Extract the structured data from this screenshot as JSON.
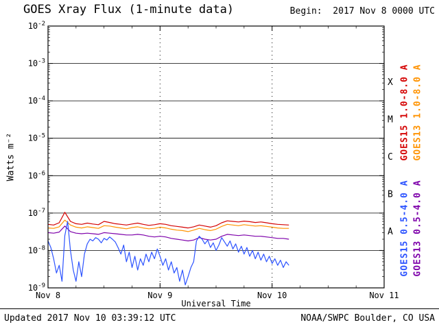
{
  "header": {
    "title": "GOES Xray Flux (1-minute data)",
    "begin_label": "Begin:  2017 Nov 8 0000 UTC"
  },
  "footer": {
    "updated": "Updated 2017 Nov 10 03:39:12 UTC",
    "credit": "NOAA/SWPC Boulder, CO USA"
  },
  "chart_data": {
    "type": "line",
    "title": "GOES Xray Flux (1-minute data)",
    "xlabel": "Universal Time",
    "ylabel": "Watts m⁻²",
    "x_range_days": [
      0,
      3
    ],
    "x_ticks": [
      {
        "t": 0,
        "label": "Nov 8"
      },
      {
        "t": 1,
        "label": "Nov 9"
      },
      {
        "t": 2,
        "label": "Nov 10"
      },
      {
        "t": 3,
        "label": "Nov 11"
      }
    ],
    "x_minor_step_days": 0.25,
    "y_log_range": [
      -9,
      -2
    ],
    "y_tick_exponents": [
      -2,
      -3,
      -4,
      -5,
      -6,
      -7,
      -8,
      -9
    ],
    "grid": {
      "horizontal": "solid",
      "vertical": "dotted-at-day-boundaries",
      "legend_position": "right-margin-rotated"
    },
    "flare_classes": [
      {
        "label": "X",
        "mid_exponent": -3.5
      },
      {
        "label": "M",
        "mid_exponent": -4.5
      },
      {
        "label": "C",
        "mid_exponent": -5.5
      },
      {
        "label": "B",
        "mid_exponent": -6.5
      },
      {
        "label": "A",
        "mid_exponent": -7.5
      }
    ],
    "series": [
      {
        "id": "goes15-long",
        "name": "GOES15 1.0-8.0 A",
        "color": "#d40000",
        "points": [
          [
            0.0,
            5e-08
          ],
          [
            0.05,
            4.8e-08
          ],
          [
            0.1,
            5.5e-08
          ],
          [
            0.15,
            1.05e-07
          ],
          [
            0.2,
            6e-08
          ],
          [
            0.25,
            5.2e-08
          ],
          [
            0.3,
            5e-08
          ],
          [
            0.35,
            5.4e-08
          ],
          [
            0.4,
            5.1e-08
          ],
          [
            0.45,
            4.9e-08
          ],
          [
            0.5,
            6e-08
          ],
          [
            0.55,
            5.6e-08
          ],
          [
            0.6,
            5.2e-08
          ],
          [
            0.65,
            5e-08
          ],
          [
            0.7,
            4.8e-08
          ],
          [
            0.75,
            5.1e-08
          ],
          [
            0.8,
            5.4e-08
          ],
          [
            0.85,
            5e-08
          ],
          [
            0.9,
            4.7e-08
          ],
          [
            0.95,
            4.9e-08
          ],
          [
            1.0,
            5.2e-08
          ],
          [
            1.05,
            5e-08
          ],
          [
            1.1,
            4.6e-08
          ],
          [
            1.15,
            4.4e-08
          ],
          [
            1.2,
            4.2e-08
          ],
          [
            1.25,
            4e-08
          ],
          [
            1.3,
            4.3e-08
          ],
          [
            1.35,
            4.8e-08
          ],
          [
            1.4,
            4.5e-08
          ],
          [
            1.45,
            4.2e-08
          ],
          [
            1.5,
            4.6e-08
          ],
          [
            1.55,
            5.5e-08
          ],
          [
            1.6,
            6.2e-08
          ],
          [
            1.65,
            6e-08
          ],
          [
            1.7,
            5.8e-08
          ],
          [
            1.75,
            6.1e-08
          ],
          [
            1.8,
            5.9e-08
          ],
          [
            1.85,
            5.6e-08
          ],
          [
            1.9,
            5.8e-08
          ],
          [
            1.95,
            5.5e-08
          ],
          [
            2.0,
            5.2e-08
          ],
          [
            2.05,
            5e-08
          ],
          [
            2.1,
            4.9e-08
          ],
          [
            2.15,
            4.8e-08
          ]
        ]
      },
      {
        "id": "goes13-long",
        "name": "GOES13 1.0-8.0 A",
        "color": "#ff9300",
        "points": [
          [
            0.0,
            4e-08
          ],
          [
            0.05,
            3.9e-08
          ],
          [
            0.1,
            4.3e-08
          ],
          [
            0.15,
            6.5e-08
          ],
          [
            0.2,
            4.8e-08
          ],
          [
            0.25,
            4.2e-08
          ],
          [
            0.3,
            4e-08
          ],
          [
            0.35,
            4.3e-08
          ],
          [
            0.4,
            4.1e-08
          ],
          [
            0.45,
            3.9e-08
          ],
          [
            0.5,
            4.6e-08
          ],
          [
            0.55,
            4.5e-08
          ],
          [
            0.6,
            4.2e-08
          ],
          [
            0.65,
            4e-08
          ],
          [
            0.7,
            3.8e-08
          ],
          [
            0.75,
            4.1e-08
          ],
          [
            0.8,
            4.3e-08
          ],
          [
            0.85,
            4e-08
          ],
          [
            0.9,
            3.8e-08
          ],
          [
            0.95,
            3.9e-08
          ],
          [
            1.0,
            4.2e-08
          ],
          [
            1.05,
            4e-08
          ],
          [
            1.1,
            3.7e-08
          ],
          [
            1.15,
            3.5e-08
          ],
          [
            1.2,
            3.4e-08
          ],
          [
            1.25,
            3.2e-08
          ],
          [
            1.3,
            3.5e-08
          ],
          [
            1.35,
            3.9e-08
          ],
          [
            1.4,
            3.6e-08
          ],
          [
            1.45,
            3.4e-08
          ],
          [
            1.5,
            3.7e-08
          ],
          [
            1.55,
            4.4e-08
          ],
          [
            1.6,
            5e-08
          ],
          [
            1.65,
            4.8e-08
          ],
          [
            1.7,
            4.6e-08
          ],
          [
            1.75,
            4.9e-08
          ],
          [
            1.8,
            4.7e-08
          ],
          [
            1.85,
            4.5e-08
          ],
          [
            1.9,
            4.6e-08
          ],
          [
            1.95,
            4.4e-08
          ],
          [
            2.0,
            4.2e-08
          ],
          [
            2.05,
            4e-08
          ],
          [
            2.1,
            3.9e-08
          ],
          [
            2.15,
            3.9e-08
          ]
        ]
      },
      {
        "id": "goes13-short",
        "name": "GOES13 0.5-4.0 A",
        "color": "#7d00aa",
        "points": [
          [
            0.0,
            3e-08
          ],
          [
            0.05,
            2.9e-08
          ],
          [
            0.1,
            3.1e-08
          ],
          [
            0.15,
            4.5e-08
          ],
          [
            0.2,
            3.2e-08
          ],
          [
            0.25,
            2.9e-08
          ],
          [
            0.3,
            2.8e-08
          ],
          [
            0.35,
            2.9e-08
          ],
          [
            0.4,
            2.8e-08
          ],
          [
            0.45,
            2.7e-08
          ],
          [
            0.5,
            3e-08
          ],
          [
            0.55,
            2.9e-08
          ],
          [
            0.6,
            2.8e-08
          ],
          [
            0.65,
            2.7e-08
          ],
          [
            0.7,
            2.6e-08
          ],
          [
            0.75,
            2.6e-08
          ],
          [
            0.8,
            2.7e-08
          ],
          [
            0.85,
            2.6e-08
          ],
          [
            0.9,
            2.4e-08
          ],
          [
            0.95,
            2.3e-08
          ],
          [
            1.0,
            2.4e-08
          ],
          [
            1.05,
            2.3e-08
          ],
          [
            1.1,
            2.1e-08
          ],
          [
            1.15,
            2e-08
          ],
          [
            1.2,
            1.9e-08
          ],
          [
            1.25,
            1.8e-08
          ],
          [
            1.3,
            1.9e-08
          ],
          [
            1.35,
            2.2e-08
          ],
          [
            1.4,
            2e-08
          ],
          [
            1.45,
            1.9e-08
          ],
          [
            1.5,
            2e-08
          ],
          [
            1.55,
            2.4e-08
          ],
          [
            1.6,
            2.7e-08
          ],
          [
            1.65,
            2.6e-08
          ],
          [
            1.7,
            2.5e-08
          ],
          [
            1.75,
            2.6e-08
          ],
          [
            1.8,
            2.5e-08
          ],
          [
            1.85,
            2.4e-08
          ],
          [
            1.9,
            2.4e-08
          ],
          [
            1.95,
            2.3e-08
          ],
          [
            2.0,
            2.2e-08
          ],
          [
            2.05,
            2.1e-08
          ],
          [
            2.1,
            2.1e-08
          ],
          [
            2.15,
            2e-08
          ]
        ]
      },
      {
        "id": "goes15-short",
        "name": "GOES15 0.5-4.0 A",
        "color": "#2b52ff",
        "points": [
          [
            0.0,
            1.8e-08
          ],
          [
            0.025,
            1.2e-08
          ],
          [
            0.05,
            6e-09
          ],
          [
            0.075,
            2.5e-09
          ],
          [
            0.1,
            4e-09
          ],
          [
            0.125,
            1.5e-09
          ],
          [
            0.15,
            2.5e-08
          ],
          [
            0.175,
            6e-08
          ],
          [
            0.2,
            1e-08
          ],
          [
            0.225,
            3e-09
          ],
          [
            0.25,
            1.5e-09
          ],
          [
            0.275,
            5e-09
          ],
          [
            0.3,
            2e-09
          ],
          [
            0.325,
            8e-09
          ],
          [
            0.35,
            1.5e-08
          ],
          [
            0.375,
            2e-08
          ],
          [
            0.4,
            1.8e-08
          ],
          [
            0.425,
            2.2e-08
          ],
          [
            0.45,
            2e-08
          ],
          [
            0.475,
            1.6e-08
          ],
          [
            0.5,
            2.1e-08
          ],
          [
            0.525,
            1.9e-08
          ],
          [
            0.55,
            2.3e-08
          ],
          [
            0.575,
            2e-08
          ],
          [
            0.6,
            1.7e-08
          ],
          [
            0.625,
            1.2e-08
          ],
          [
            0.65,
            8e-09
          ],
          [
            0.675,
            1.4e-08
          ],
          [
            0.7,
            5e-09
          ],
          [
            0.725,
            9e-09
          ],
          [
            0.75,
            3.5e-09
          ],
          [
            0.775,
            7e-09
          ],
          [
            0.8,
            3e-09
          ],
          [
            0.825,
            6e-09
          ],
          [
            0.85,
            4e-09
          ],
          [
            0.875,
            8e-09
          ],
          [
            0.9,
            5e-09
          ],
          [
            0.925,
            9e-09
          ],
          [
            0.95,
            6e-09
          ],
          [
            0.975,
            1.1e-08
          ],
          [
            1.0,
            7e-09
          ],
          [
            1.025,
            4e-09
          ],
          [
            1.05,
            6e-09
          ],
          [
            1.075,
            3e-09
          ],
          [
            1.1,
            5e-09
          ],
          [
            1.125,
            2.5e-09
          ],
          [
            1.15,
            3.5e-09
          ],
          [
            1.175,
            1.5e-09
          ],
          [
            1.2,
            3e-09
          ],
          [
            1.225,
            1.2e-09
          ],
          [
            1.25,
            2e-09
          ],
          [
            1.275,
            3.5e-09
          ],
          [
            1.3,
            5e-09
          ],
          [
            1.325,
            1.8e-08
          ],
          [
            1.35,
            2.4e-08
          ],
          [
            1.375,
            2e-08
          ],
          [
            1.4,
            1.5e-08
          ],
          [
            1.425,
            1.9e-08
          ],
          [
            1.45,
            1.2e-08
          ],
          [
            1.475,
            1.6e-08
          ],
          [
            1.5,
            1e-08
          ],
          [
            1.525,
            1.4e-08
          ],
          [
            1.55,
            2.2e-08
          ],
          [
            1.575,
            1.7e-08
          ],
          [
            1.6,
            1.3e-08
          ],
          [
            1.625,
            1.8e-08
          ],
          [
            1.65,
            1.1e-08
          ],
          [
            1.675,
            1.5e-08
          ],
          [
            1.7,
            9e-09
          ],
          [
            1.725,
            1.3e-08
          ],
          [
            1.75,
            8e-09
          ],
          [
            1.775,
            1.2e-08
          ],
          [
            1.8,
            7e-09
          ],
          [
            1.825,
            1e-08
          ],
          [
            1.85,
            6e-09
          ],
          [
            1.875,
            9e-09
          ],
          [
            1.9,
            5.5e-09
          ],
          [
            1.925,
            8e-09
          ],
          [
            1.95,
            5e-09
          ],
          [
            1.975,
            7e-09
          ],
          [
            2.0,
            4.5e-09
          ],
          [
            2.025,
            6e-09
          ],
          [
            2.05,
            4e-09
          ],
          [
            2.075,
            5.5e-09
          ],
          [
            2.1,
            3.5e-09
          ],
          [
            2.125,
            5e-09
          ],
          [
            2.15,
            4e-09
          ]
        ]
      }
    ],
    "legend": [
      {
        "id": "goes15-long",
        "label": "GOES15 1.0-8.0 A",
        "color": "#d40000",
        "column": 1,
        "band": "top"
      },
      {
        "id": "goes13-long",
        "label": "GOES13 1.0-8.0 A",
        "color": "#ff9300",
        "column": 2,
        "band": "top"
      },
      {
        "id": "goes15-short",
        "label": "GOES15 0.5-4.0 A",
        "color": "#2b52ff",
        "column": 1,
        "band": "bottom"
      },
      {
        "id": "goes13-short",
        "label": "GOES13 0.5-4.0 A",
        "color": "#7d00aa",
        "column": 2,
        "band": "bottom"
      }
    ]
  }
}
